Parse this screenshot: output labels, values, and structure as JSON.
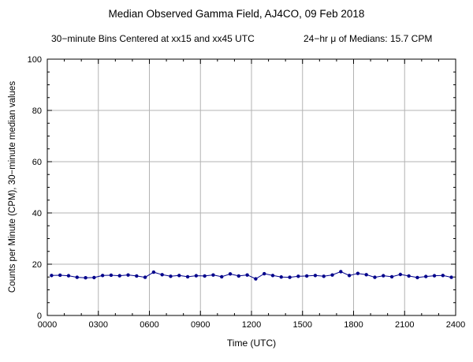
{
  "title": "Median Observed Gamma Field, AJ4CO, 09 Feb 2018",
  "subtitle_left": "30−minute Bins Centered at xx15 and xx45 UTC",
  "subtitle_right": "24−hr μ of Medians: 15.7 CPM",
  "chart_data": {
    "type": "line",
    "title": "Median Observed Gamma Field, AJ4CO, 09 Feb 2018",
    "xlabel": "Time (UTC)",
    "ylabel": "Counts per Minute (CPM), 30−minute median values",
    "xlim": [
      0,
      24
    ],
    "ylim": [
      0,
      100
    ],
    "x_tick_hours": [
      0,
      3,
      6,
      9,
      12,
      15,
      18,
      21,
      24
    ],
    "x_tick_labels": [
      "0000",
      "0300",
      "0600",
      "0900",
      "1200",
      "1500",
      "1800",
      "2100",
      "2400"
    ],
    "y_ticks": [
      0,
      20,
      40,
      60,
      80,
      100
    ],
    "grid": true,
    "legend_position": "none",
    "line_color": "#00008B",
    "grid_color": "#b3b3b3",
    "mean_of_medians_cpm": 15.7,
    "x_hours": [
      0.25,
      0.75,
      1.25,
      1.75,
      2.25,
      2.75,
      3.25,
      3.75,
      4.25,
      4.75,
      5.25,
      5.75,
      6.25,
      6.75,
      7.25,
      7.75,
      8.25,
      8.75,
      9.25,
      9.75,
      10.25,
      10.75,
      11.25,
      11.75,
      12.25,
      12.75,
      13.25,
      13.75,
      14.25,
      14.75,
      15.25,
      15.75,
      16.25,
      16.75,
      17.25,
      17.75,
      18.25,
      18.75,
      19.25,
      19.75,
      20.25,
      20.75,
      21.25,
      21.75,
      22.25,
      22.75,
      23.25,
      23.75
    ],
    "values": [
      15.6,
      15.7,
      15.5,
      14.9,
      14.7,
      14.8,
      15.6,
      15.7,
      15.5,
      15.8,
      15.4,
      14.9,
      16.9,
      15.9,
      15.3,
      15.6,
      15.1,
      15.5,
      15.4,
      15.8,
      15.1,
      16.2,
      15.4,
      15.8,
      14.3,
      16.3,
      15.6,
      15.0,
      14.9,
      15.3,
      15.4,
      15.6,
      15.3,
      15.8,
      17.1,
      15.6,
      16.4,
      15.9,
      14.9,
      15.5,
      15.1,
      16.0,
      15.4,
      14.8,
      15.2,
      15.5,
      15.6,
      14.9
    ]
  }
}
